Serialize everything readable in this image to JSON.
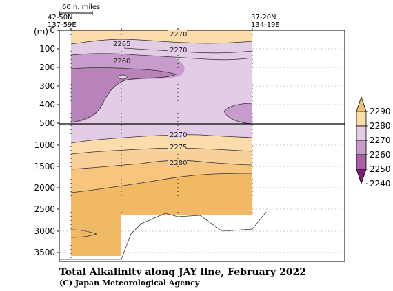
{
  "chart_data": {
    "type": "contour",
    "title": "Total Alkalinity along JAY line, February 2022",
    "credit": "(C) Japan Meteorological Agency",
    "y_unit": "(m)",
    "scale_label": "60 n. miles",
    "station_labels": {
      "left": [
        "42-50N",
        "137-59E"
      ],
      "right": [
        "37-20N",
        "134-19E"
      ]
    },
    "upper_yticks": [
      "0",
      "100",
      "200",
      "300",
      "400",
      "500"
    ],
    "lower_yticks": [
      "1000",
      "1500",
      "2000",
      "2500",
      "3000",
      "3500"
    ],
    "colorbar": {
      "levels": [
        2290,
        2280,
        2270,
        2260,
        2250,
        2240
      ],
      "colors": [
        "#f2c36e",
        "#fbdcaa",
        "#e3cde6",
        "#c79bcb",
        "#a85fa6",
        "#7b1f7c"
      ]
    },
    "contour_labels": [
      "2270",
      "2265",
      "2270",
      "2260",
      "2270",
      "2275",
      "2280"
    ]
  }
}
